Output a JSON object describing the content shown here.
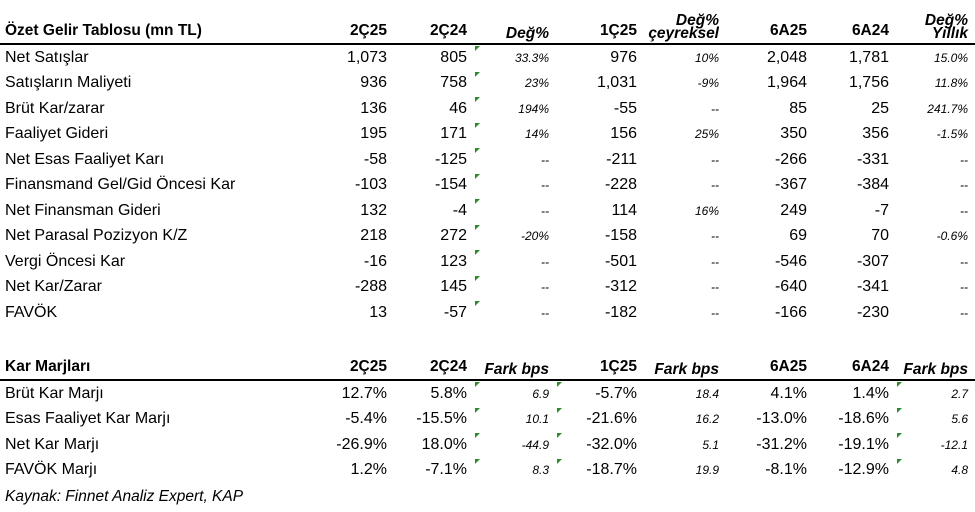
{
  "income": {
    "headers": [
      "Özet Gelir Tablosu (mn TL)",
      "2Ç25",
      "2Ç24",
      "Değ%",
      "1Ç25",
      "Değ% çeyreksel",
      "6A25",
      "6A24",
      "Değ% Yıllık"
    ],
    "rows": [
      [
        "Net Satışlar",
        "1,073",
        "805",
        "33.3%",
        "976",
        "10%",
        "2,048",
        "1,781",
        "15.0%"
      ],
      [
        "Satışların Maliyeti",
        "936",
        "758",
        "23%",
        "1,031",
        "-9%",
        "1,964",
        "1,756",
        "11.8%"
      ],
      [
        "Brüt Kar/zarar",
        "136",
        "46",
        "194%",
        "-55",
        "--",
        "85",
        "25",
        "241.7%"
      ],
      [
        "Faaliyet Gideri",
        "195",
        "171",
        "14%",
        "156",
        "25%",
        "350",
        "356",
        "-1.5%"
      ],
      [
        "Net Esas Faaliyet Karı",
        "-58",
        "-125",
        "--",
        "-211",
        "--",
        "-266",
        "-331",
        "--"
      ],
      [
        "Finansmand Gel/Gid Öncesi Kar",
        "-103",
        "-154",
        "--",
        "-228",
        "--",
        "-367",
        "-384",
        "--"
      ],
      [
        "Net Finansman Gideri",
        "132",
        "-4",
        "--",
        "114",
        "16%",
        "249",
        "-7",
        "--"
      ],
      [
        "Net Parasal Pozizyon K/Z",
        "218",
        "272",
        "-20%",
        "-158",
        "--",
        "69",
        "70",
        "-0.6%"
      ],
      [
        "Vergi Öncesi Kar",
        "-16",
        "123",
        "--",
        "-501",
        "--",
        "-546",
        "-307",
        "--"
      ],
      [
        "Net Kar/Zarar",
        "-288",
        "145",
        "--",
        "-312",
        "--",
        "-640",
        "-341",
        "--"
      ],
      [
        "FAVÖK",
        "13",
        "-57",
        "--",
        "-182",
        "--",
        "-166",
        "-230",
        "--"
      ]
    ]
  },
  "margins": {
    "headers": [
      "Kar Marjları",
      "2Ç25",
      "2Ç24",
      "Fark bps",
      "1Ç25",
      "Fark bps",
      "6A25",
      "6A24",
      "Fark bps"
    ],
    "rows": [
      [
        "Brüt Kar Marjı",
        "12.7%",
        "5.8%",
        "6.9",
        "-5.7%",
        "18.4",
        "4.1%",
        "1.4%",
        "2.7"
      ],
      [
        "Esas Faaliyet Kar Marjı",
        "-5.4%",
        "-15.5%",
        "10.1",
        "-21.6%",
        "16.2",
        "-13.0%",
        "-18.6%",
        "5.6"
      ],
      [
        "Net Kar Marjı",
        "-26.9%",
        "18.0%",
        "-44.9",
        "-32.0%",
        "5.1",
        "-31.2%",
        "-19.1%",
        "-12.1"
      ],
      [
        "FAVÖK Marjı",
        "1.2%",
        "-7.1%",
        "8.3",
        "-18.7%",
        "19.9",
        "-8.1%",
        "-12.9%",
        "4.8"
      ]
    ]
  },
  "source": "Kaynak: Finnet Analiz Expert, KAP",
  "colors": {
    "marker": "#2d8b2d"
  }
}
